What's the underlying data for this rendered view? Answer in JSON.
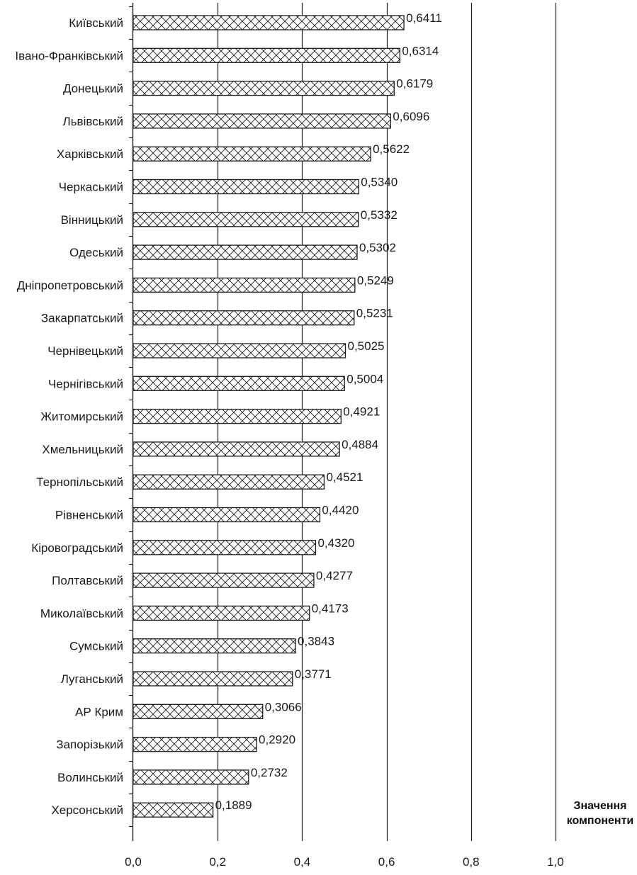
{
  "chart_data": {
    "type": "bar",
    "orientation": "horizontal",
    "categories": [
      "Київський",
      "Івано-Франківський",
      "Донецький",
      "Львівський",
      "Харківський",
      "Черкаський",
      "Вінницький",
      "Одеський",
      "Дніпропетровський",
      "Закарпатський",
      "Чернівецький",
      "Чернігівський",
      "Житомирський",
      "Хмельницький",
      "Тернопільський",
      "Рівненський",
      "Кіровоградський",
      "Полтавський",
      "Миколаївський",
      "Сумський",
      "Луганський",
      "АР Крим",
      "Запорізький",
      "Волинський",
      "Херсонський"
    ],
    "values": [
      0.6411,
      0.6314,
      0.6179,
      0.6096,
      0.5622,
      0.534,
      0.5332,
      0.5302,
      0.5249,
      0.5231,
      0.5025,
      0.5004,
      0.4921,
      0.4884,
      0.4521,
      0.442,
      0.432,
      0.4277,
      0.4173,
      0.3843,
      0.3771,
      0.3066,
      0.292,
      0.2732,
      0.1889
    ],
    "value_labels": [
      "0,6411",
      "0,6314",
      "0,6179",
      "0,6096",
      "0,5622",
      "0,5340",
      "0,5332",
      "0,5302",
      "0,5249",
      "0,5231",
      "0,5025",
      "0,5004",
      "0,4921",
      "0,4884",
      "0,4521",
      "0,4420",
      "0,4320",
      "0,4277",
      "0,4173",
      "0,3843",
      "0,3771",
      "0,3066",
      "0,2920",
      "0,2732",
      "0,1889"
    ],
    "title": "",
    "xlabel": [
      "Значення",
      "компоненти"
    ],
    "ylabel": "",
    "xlim": [
      0,
      1.0
    ],
    "xticks": [
      0,
      0.2,
      0.4,
      0.6,
      0.8,
      1.0
    ],
    "xtick_labels": [
      "0,0",
      "0,2",
      "0,4",
      "0,6",
      "0,8",
      "1,0"
    ],
    "grid": "vertical",
    "bar_fill": "cross-hatch",
    "bar_color": "#1a1a1a",
    "background": "#ffffff"
  }
}
